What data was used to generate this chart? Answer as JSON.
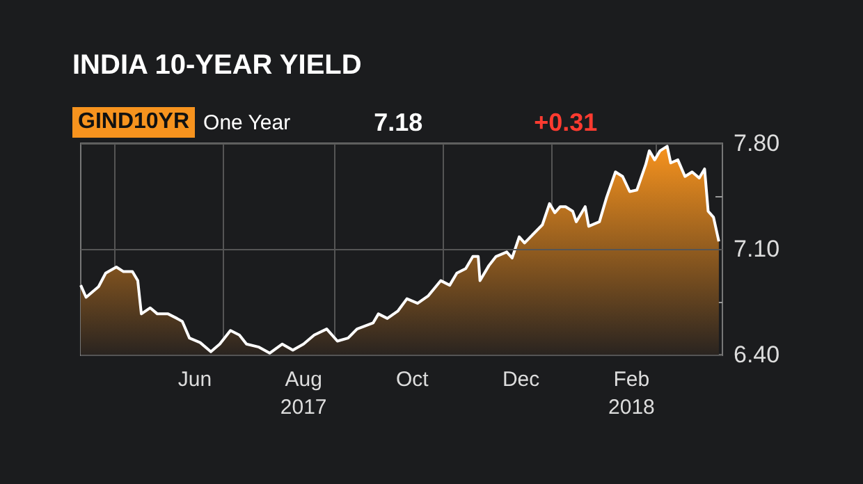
{
  "chart_data": {
    "type": "area",
    "title": "INDIA 10-YEAR YIELD",
    "annotations": [
      "GIND10YR",
      "One Year",
      "7.18",
      "+0.31"
    ],
    "x": [
      "2017-04-12",
      "2017-04-15",
      "2017-04-22",
      "2017-04-26",
      "2017-05-02",
      "2017-05-06",
      "2017-05-11",
      "2017-05-14",
      "2017-05-16",
      "2017-05-21",
      "2017-05-25",
      "2017-05-31",
      "2017-06-05",
      "2017-06-08",
      "2017-06-12",
      "2017-06-18",
      "2017-06-24",
      "2017-06-29",
      "2017-07-05",
      "2017-07-10",
      "2017-07-14",
      "2017-07-21",
      "2017-07-27",
      "2017-08-03",
      "2017-08-09",
      "2017-08-15",
      "2017-08-21",
      "2017-08-28",
      "2017-09-03",
      "2017-09-09",
      "2017-09-14",
      "2017-09-23",
      "2017-09-26",
      "2017-10-01",
      "2017-10-07",
      "2017-10-12",
      "2017-10-18",
      "2017-10-24",
      "2017-10-31",
      "2017-11-05",
      "2017-11-09",
      "2017-11-14",
      "2017-11-18",
      "2017-11-21",
      "2017-11-22",
      "2017-11-27",
      "2017-12-01",
      "2017-12-07",
      "2017-12-10",
      "2017-12-14",
      "2017-12-17",
      "2017-12-27",
      "2017-12-31",
      "2018-01-03",
      "2018-01-06",
      "2018-01-09",
      "2018-01-13",
      "2018-01-15",
      "2018-01-20",
      "2018-01-22",
      "2018-01-28",
      "2018-02-01",
      "2018-02-06",
      "2018-02-10",
      "2018-02-14",
      "2018-02-18",
      "2018-02-23",
      "2018-02-25",
      "2018-02-28",
      "2018-03-03",
      "2018-03-07",
      "2018-03-09",
      "2018-03-13",
      "2018-03-17",
      "2018-03-21",
      "2018-03-25",
      "2018-03-28",
      "2018-03-30",
      "2018-04-02",
      "2018-04-05"
    ],
    "series": [
      {
        "color": "#ffffff",
        "values": [
          6.86,
          6.78,
          6.85,
          6.94,
          6.98,
          6.95,
          6.95,
          6.89,
          6.67,
          6.71,
          6.67,
          6.67,
          6.64,
          6.62,
          6.51,
          6.48,
          6.42,
          6.47,
          6.56,
          6.53,
          6.47,
          6.45,
          6.41,
          6.47,
          6.43,
          6.47,
          6.53,
          6.57,
          6.49,
          6.51,
          6.57,
          6.61,
          6.67,
          6.64,
          6.69,
          6.77,
          6.74,
          6.79,
          6.89,
          6.86,
          6.94,
          6.97,
          7.05,
          7.05,
          6.89,
          6.99,
          7.05,
          7.08,
          7.04,
          7.18,
          7.14,
          7.26,
          7.4,
          7.34,
          7.38,
          7.38,
          7.35,
          7.28,
          7.38,
          7.25,
          7.28,
          7.44,
          7.61,
          7.58,
          7.48,
          7.49,
          7.66,
          7.75,
          7.69,
          7.75,
          7.78,
          7.67,
          7.69,
          7.58,
          7.61,
          7.57,
          7.63,
          7.35,
          7.31,
          7.15
        ]
      }
    ],
    "xlim": [
      "2017-04-12",
      "2018-04-07"
    ],
    "xticks": [
      {
        "value": "2017-05-01",
        "label": null
      },
      {
        "value": "2017-06-01",
        "label": null
      },
      {
        "value": "2017-06-15",
        "label": "Jun"
      },
      {
        "value": "2017-07-01",
        "label": null
      },
      {
        "value": "2017-08-01",
        "label": null
      },
      {
        "value": "2017-08-15",
        "label": "Aug\n2017"
      },
      {
        "value": "2017-09-01",
        "label": null
      },
      {
        "value": "2017-10-01",
        "label": null
      },
      {
        "value": "2017-10-15",
        "label": "Oct"
      },
      {
        "value": "2017-11-01",
        "label": null
      },
      {
        "value": "2017-12-01",
        "label": null
      },
      {
        "value": "2017-12-15",
        "label": "Dec"
      },
      {
        "value": "2018-01-01",
        "label": null
      },
      {
        "value": "2018-02-01",
        "label": null
      },
      {
        "value": "2018-02-15",
        "label": "Feb\n2018"
      },
      {
        "value": "2018-03-01",
        "label": null
      },
      {
        "value": "2018-04-01",
        "label": null
      }
    ],
    "ylim": [
      6.4,
      7.8
    ],
    "yticks": [
      {
        "value": 6.4,
        "label": "6.40"
      },
      {
        "value": 6.75,
        "label": null
      },
      {
        "value": 7.1,
        "label": "7.10"
      },
      {
        "value": 7.45,
        "label": null
      },
      {
        "value": 7.8,
        "label": "7.80"
      }
    ],
    "grid": true,
    "marker": "none",
    "line_style": "solid"
  }
}
